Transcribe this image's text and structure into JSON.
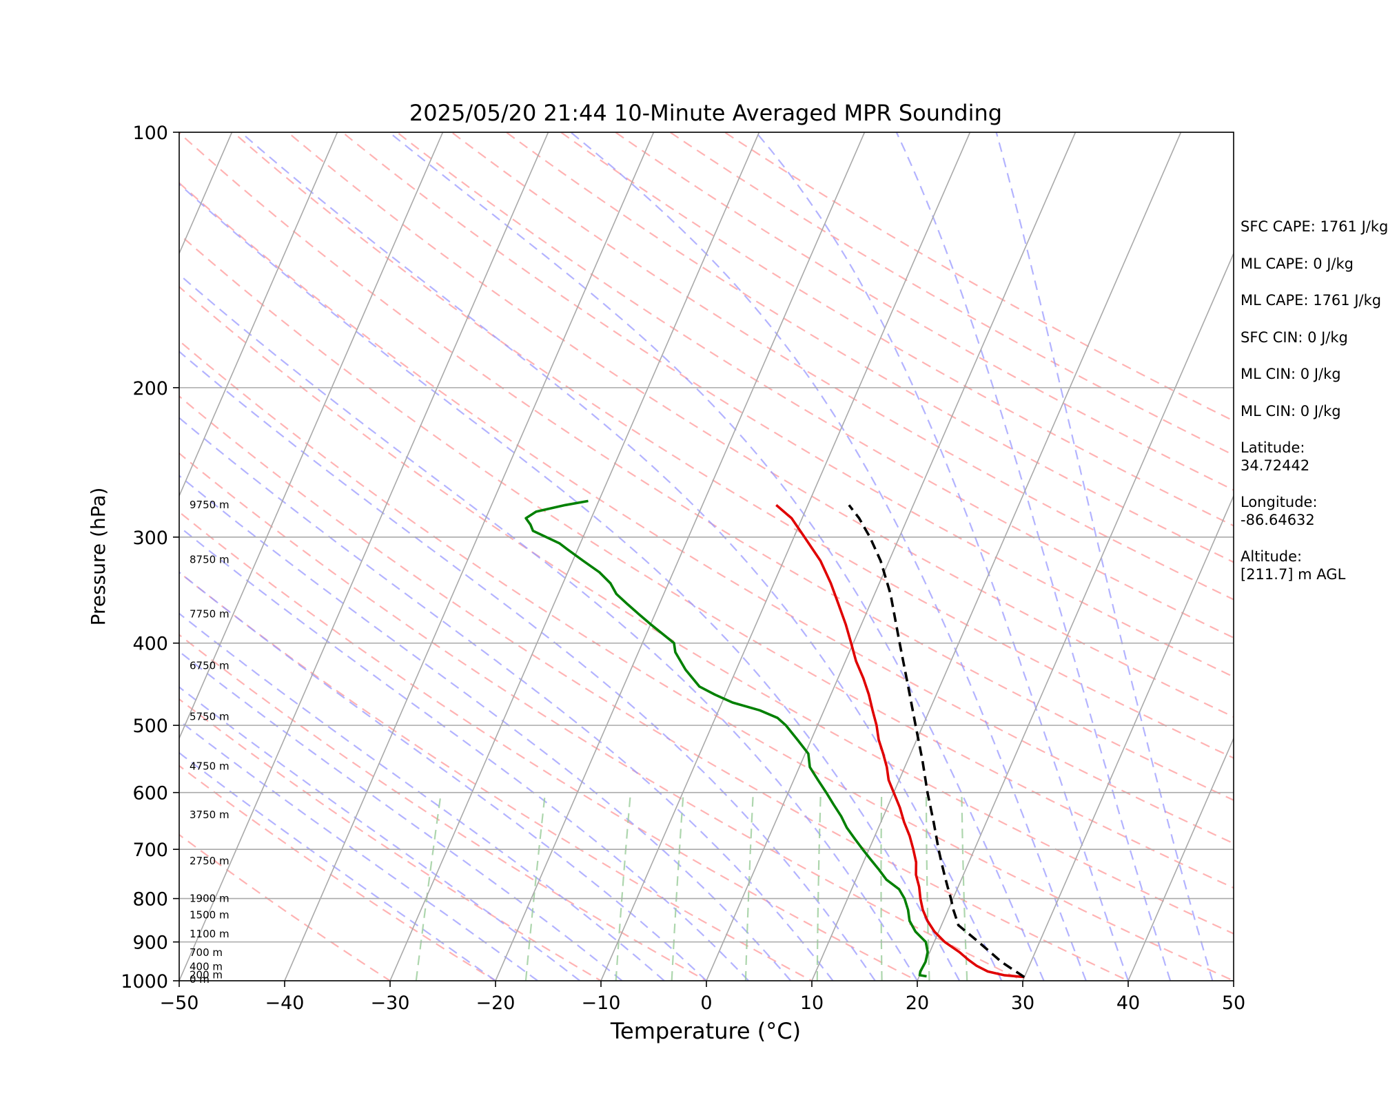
{
  "chart_data": {
    "type": "skew-t",
    "title": "2025/05/20 21:44 10-Minute Averaged MPR Sounding",
    "xlabel": "Temperature (°C)",
    "ylabel": "Pressure (hPa)",
    "xlim": [
      -50,
      50
    ],
    "ylim": [
      1000,
      100
    ],
    "y_scale": "log",
    "x_ticks": [
      "−50",
      "−40",
      "−30",
      "−20",
      "−10",
      "0",
      "10",
      "20",
      "30",
      "40",
      "50"
    ],
    "y_ticks": [
      100,
      200,
      300,
      400,
      500,
      600,
      700,
      800,
      900,
      1000
    ],
    "grid": true,
    "height_labels": [
      {
        "text": "0 m",
        "p": 1000
      },
      {
        "text": "200 m",
        "p": 988
      },
      {
        "text": "400 m",
        "p": 966
      },
      {
        "text": "700 m",
        "p": 930
      },
      {
        "text": "1100 m",
        "p": 884
      },
      {
        "text": "1500 m",
        "p": 840
      },
      {
        "text": "1900 m",
        "p": 803
      },
      {
        "text": "2750 m",
        "p": 725
      },
      {
        "text": "3750 m",
        "p": 640
      },
      {
        "text": "4750 m",
        "p": 561
      },
      {
        "text": "5750 m",
        "p": 490
      },
      {
        "text": "6750 m",
        "p": 427
      },
      {
        "text": "7750 m",
        "p": 371
      },
      {
        "text": "8750 m",
        "p": 320
      },
      {
        "text": "9750 m",
        "p": 276
      }
    ],
    "series": [
      {
        "color": "#e00000",
        "style": "solid",
        "points": [
          [
            990,
            30.0
          ],
          [
            985,
            28.0
          ],
          [
            975,
            26.3
          ],
          [
            960,
            25.0
          ],
          [
            945,
            24.0
          ],
          [
            925,
            22.8
          ],
          [
            900,
            21.0
          ],
          [
            875,
            19.6
          ],
          [
            850,
            18.5
          ],
          [
            825,
            17.6
          ],
          [
            800,
            16.9
          ],
          [
            775,
            16.3
          ],
          [
            750,
            15.5
          ],
          [
            725,
            15.0
          ],
          [
            700,
            14.2
          ],
          [
            675,
            13.3
          ],
          [
            650,
            12.2
          ],
          [
            625,
            11.2
          ],
          [
            600,
            10.0
          ],
          [
            580,
            9.0
          ],
          [
            560,
            8.3
          ],
          [
            540,
            7.4
          ],
          [
            520,
            6.4
          ],
          [
            500,
            5.6
          ],
          [
            480,
            4.6
          ],
          [
            460,
            3.6
          ],
          [
            440,
            2.4
          ],
          [
            420,
            1.0
          ],
          [
            400,
            -0.2
          ],
          [
            380,
            -1.5
          ],
          [
            360,
            -3.0
          ],
          [
            340,
            -4.6
          ],
          [
            320,
            -6.5
          ],
          [
            300,
            -9.0
          ],
          [
            285,
            -11.0
          ],
          [
            275,
            -13.0
          ]
        ]
      },
      {
        "color": "#008000",
        "style": "solid",
        "points": [
          [
            988,
            20.7
          ],
          [
            985,
            20.0
          ],
          [
            975,
            19.9
          ],
          [
            950,
            20.0
          ],
          [
            925,
            19.8
          ],
          [
            900,
            19.2
          ],
          [
            875,
            17.8
          ],
          [
            850,
            16.8
          ],
          [
            825,
            16.2
          ],
          [
            800,
            15.4
          ],
          [
            780,
            14.5
          ],
          [
            760,
            12.9
          ],
          [
            740,
            11.8
          ],
          [
            720,
            10.6
          ],
          [
            700,
            9.4
          ],
          [
            680,
            8.2
          ],
          [
            660,
            7.0
          ],
          [
            640,
            6.0
          ],
          [
            620,
            4.8
          ],
          [
            600,
            3.6
          ],
          [
            580,
            2.3
          ],
          [
            560,
            1.0
          ],
          [
            540,
            0.3
          ],
          [
            520,
            -1.3
          ],
          [
            500,
            -3.0
          ],
          [
            490,
            -4.1
          ],
          [
            480,
            -6.1
          ],
          [
            470,
            -9.0
          ],
          [
            460,
            -11.0
          ],
          [
            450,
            -12.8
          ],
          [
            430,
            -14.8
          ],
          [
            410,
            -16.5
          ],
          [
            400,
            -17.0
          ],
          [
            380,
            -20.0
          ],
          [
            370,
            -21.5
          ],
          [
            360,
            -23.0
          ],
          [
            350,
            -24.5
          ],
          [
            340,
            -25.5
          ],
          [
            330,
            -27.0
          ],
          [
            320,
            -29.0
          ],
          [
            310,
            -31.0
          ],
          [
            305,
            -32.0
          ],
          [
            300,
            -33.5
          ],
          [
            295,
            -35.0
          ],
          [
            290,
            -35.5
          ],
          [
            285,
            -36.2
          ],
          [
            280,
            -35.5
          ],
          [
            275,
            -33.0
          ],
          [
            272,
            -31.0
          ]
        ]
      },
      {
        "color": "#000000",
        "style": "dashed",
        "points": [
          [
            990,
            30.0
          ],
          [
            950,
            27.2
          ],
          [
            900,
            24.2
          ],
          [
            875,
            22.6
          ],
          [
            860,
            21.6
          ],
          [
            850,
            21.3
          ],
          [
            825,
            20.5
          ],
          [
            800,
            19.8
          ],
          [
            775,
            19.0
          ],
          [
            750,
            18.2
          ],
          [
            725,
            17.4
          ],
          [
            700,
            16.6
          ],
          [
            650,
            15.0
          ],
          [
            600,
            13.2
          ],
          [
            550,
            11.4
          ],
          [
            500,
            9.3
          ],
          [
            450,
            7.0
          ],
          [
            400,
            4.4
          ],
          [
            350,
            1.5
          ],
          [
            320,
            -0.8
          ],
          [
            300,
            -2.8
          ],
          [
            285,
            -4.6
          ],
          [
            275,
            -6.1
          ]
        ]
      }
    ],
    "background_lines": [
      "isotherms",
      "dry adiabats",
      "moist adiabats",
      "mixing ratio lines"
    ]
  },
  "info": {
    "sfc_cape": "SFC CAPE: 1761 J/kg",
    "ml_cape_1": "ML CAPE: 0 J/kg",
    "ml_cape_2": "ML CAPE: 1761 J/kg",
    "sfc_cin": "SFC CIN: 0 J/kg",
    "ml_cin_1": "ML CIN: 0 J/kg",
    "ml_cin_2": "ML CIN: 0 J/kg",
    "latitude_label": "Latitude:",
    "latitude_value": "34.72442",
    "longitude_label": "Longitude:",
    "longitude_value": "-86.64632",
    "altitude_label": "Altitude:",
    "altitude_value": "[211.7] m AGL"
  },
  "colors": {
    "isotherm": "#a9a9a9",
    "dry_adiabat": "#ff9999",
    "moist_adiabat": "#9999ff",
    "mixing_ratio": "#99cc99"
  }
}
